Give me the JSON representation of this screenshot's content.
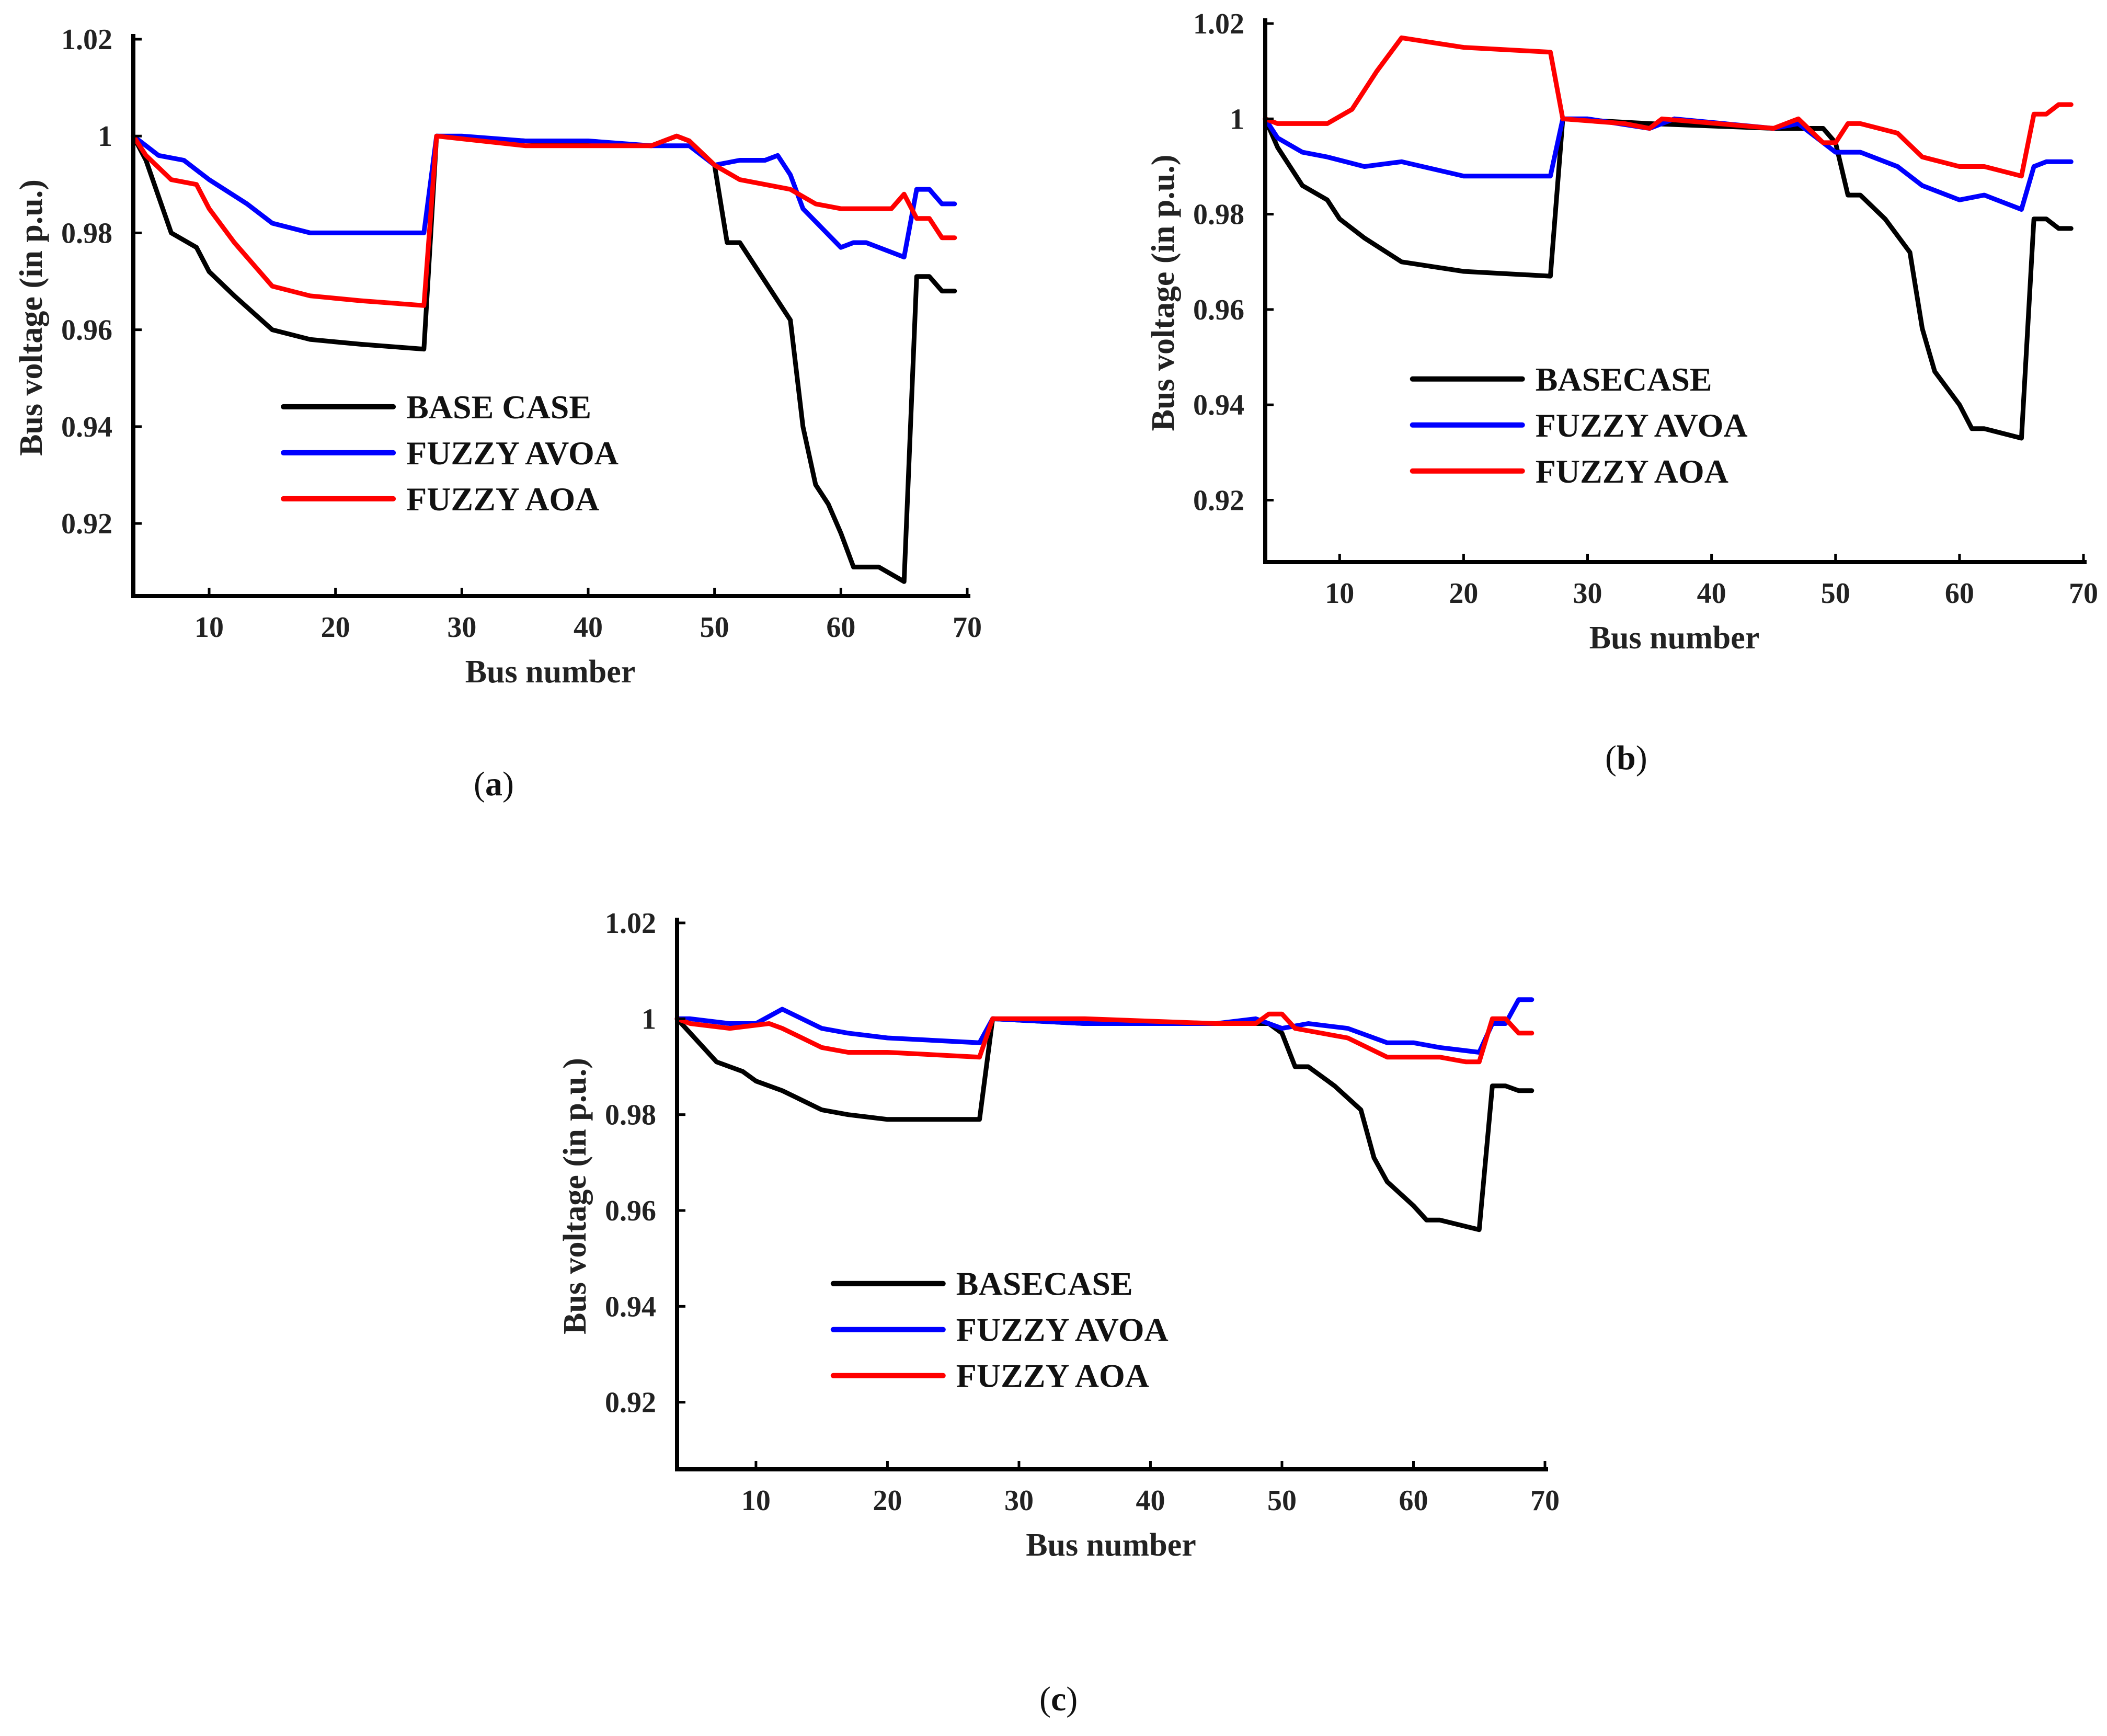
{
  "chart_data": [
    {
      "type": "line",
      "panel": "a",
      "caption": "a",
      "xlabel": "Bus number",
      "ylabel": "Bus voltage (in p.u.)",
      "xlim": [
        4,
        70
      ],
      "ylim": [
        0.905,
        1.02
      ],
      "xticks": [
        10,
        20,
        30,
        40,
        50,
        60,
        70
      ],
      "yticks": [
        0.92,
        0.94,
        0.96,
        0.98,
        1,
        1.02
      ],
      "ytick_labels": [
        "0.92",
        "0.94",
        "0.96",
        "0.98",
        "1",
        "1.02"
      ],
      "legend_position": "center-left",
      "series": [
        {
          "name": "BASE CASE",
          "color": "#000000",
          "x": [
            4,
            5,
            7,
            9,
            10,
            12,
            15,
            18,
            22,
            27,
            28,
            35,
            45,
            47,
            48,
            50,
            51,
            52,
            54,
            56,
            57,
            58,
            59,
            60,
            61,
            63,
            65,
            66,
            67,
            68,
            69
          ],
          "y": [
            1.0,
            0.995,
            0.98,
            0.977,
            0.972,
            0.967,
            0.96,
            0.958,
            0.957,
            0.956,
            1.0,
            0.999,
            0.998,
            1.0,
            0.999,
            0.994,
            0.978,
            0.978,
            0.97,
            0.962,
            0.94,
            0.928,
            0.924,
            0.918,
            0.911,
            0.911,
            0.908,
            0.971,
            0.971,
            0.968,
            0.968
          ]
        },
        {
          "name": "FUZZY AVOA",
          "color": "#0000ff",
          "x": [
            4,
            5,
            6,
            8,
            10,
            13,
            15,
            18,
            22,
            27,
            28,
            30,
            35,
            40,
            45,
            48,
            50,
            52,
            54,
            55,
            56,
            57,
            60,
            61,
            62,
            63,
            65,
            66,
            67,
            68,
            69
          ],
          "y": [
            1.0,
            0.998,
            0.996,
            0.995,
            0.991,
            0.986,
            0.982,
            0.98,
            0.98,
            0.98,
            1.0,
            1.0,
            0.999,
            0.999,
            0.998,
            0.998,
            0.994,
            0.995,
            0.995,
            0.996,
            0.992,
            0.985,
            0.977,
            0.978,
            0.978,
            0.977,
            0.975,
            0.989,
            0.989,
            0.986,
            0.986
          ]
        },
        {
          "name": "FUZZY AOA",
          "color": "#ff0000",
          "x": [
            4,
            5,
            7,
            9,
            10,
            12,
            15,
            18,
            22,
            27,
            28,
            35,
            45,
            47,
            48,
            50,
            52,
            54,
            56,
            58,
            60,
            62,
            64,
            65,
            66,
            67,
            68,
            69
          ],
          "y": [
            1.0,
            0.996,
            0.991,
            0.99,
            0.985,
            0.978,
            0.969,
            0.967,
            0.966,
            0.965,
            1.0,
            0.998,
            0.998,
            1.0,
            0.999,
            0.994,
            0.991,
            0.99,
            0.989,
            0.986,
            0.985,
            0.985,
            0.985,
            0.988,
            0.983,
            0.983,
            0.979,
            0.979
          ]
        }
      ]
    },
    {
      "type": "line",
      "panel": "b",
      "caption": "b",
      "xlabel": "Bus number",
      "ylabel": "Bus voltage (in p.u.)",
      "xlim": [
        4,
        70
      ],
      "ylim": [
        0.907,
        1.02
      ],
      "xticks": [
        10,
        20,
        30,
        40,
        50,
        60,
        70
      ],
      "yticks": [
        0.92,
        0.94,
        0.96,
        0.98,
        1,
        1.02
      ],
      "ytick_labels": [
        "0.92",
        "0.94",
        "0.96",
        "0.98",
        "1",
        "1.02"
      ],
      "legend_position": "center-left",
      "series": [
        {
          "name": "BASECASE",
          "color": "#000000",
          "x": [
            4,
            5,
            7,
            9,
            10,
            12,
            15,
            20,
            27,
            28,
            35,
            45,
            49,
            50,
            51,
            52,
            54,
            56,
            57,
            58,
            60,
            61,
            62,
            65,
            66,
            67,
            68,
            69
          ],
          "y": [
            1.0,
            0.994,
            0.986,
            0.983,
            0.979,
            0.975,
            0.97,
            0.968,
            0.967,
            1.0,
            0.999,
            0.998,
            0.998,
            0.995,
            0.984,
            0.984,
            0.979,
            0.972,
            0.956,
            0.947,
            0.94,
            0.935,
            0.935,
            0.933,
            0.979,
            0.979,
            0.977,
            0.977
          ]
        },
        {
          "name": "FUZZY AVOA",
          "color": "#0000ff",
          "x": [
            4,
            5,
            7,
            9,
            12,
            15,
            20,
            27,
            28,
            30,
            35,
            37,
            45,
            47,
            50,
            52,
            55,
            57,
            60,
            62,
            65,
            66,
            67,
            69
          ],
          "y": [
            1.0,
            0.996,
            0.993,
            0.992,
            0.99,
            0.991,
            0.988,
            0.988,
            1.0,
            1.0,
            0.998,
            1.0,
            0.998,
            0.999,
            0.993,
            0.993,
            0.99,
            0.986,
            0.983,
            0.984,
            0.981,
            0.99,
            0.991,
            0.991
          ]
        },
        {
          "name": "FUZZY AOA",
          "color": "#ff0000",
          "x": [
            4,
            5,
            7,
            9,
            11,
            13,
            15,
            20,
            27,
            28,
            33,
            35,
            36,
            45,
            47,
            49,
            50,
            51,
            52,
            55,
            57,
            60,
            62,
            65,
            66,
            67,
            68,
            69
          ],
          "y": [
            1.0,
            0.999,
            0.999,
            0.999,
            1.002,
            1.01,
            1.017,
            1.015,
            1.014,
            1.0,
            0.999,
            0.998,
            1.0,
            0.998,
            1.0,
            0.995,
            0.995,
            0.999,
            0.999,
            0.997,
            0.992,
            0.99,
            0.99,
            0.988,
            1.001,
            1.001,
            1.003,
            1.003
          ]
        }
      ]
    },
    {
      "type": "line",
      "panel": "c",
      "caption": "c",
      "xlabel": "Bus number",
      "ylabel": "Bus voltage (in p.u.)",
      "xlim": [
        4,
        70
      ],
      "ylim": [
        0.906,
        1.02
      ],
      "xticks": [
        10,
        20,
        30,
        40,
        50,
        60,
        70
      ],
      "yticks": [
        0.92,
        0.94,
        0.96,
        0.98,
        1,
        1.02
      ],
      "ytick_labels": [
        "0.92",
        "0.94",
        "0.96",
        "0.98",
        "1",
        "1.02"
      ],
      "legend_position": "center-left",
      "series": [
        {
          "name": "BASECASE",
          "color": "#000000",
          "x": [
            4,
            5,
            7,
            9,
            10,
            12,
            15,
            17,
            20,
            27,
            28,
            35,
            45,
            49,
            50,
            51,
            52,
            54,
            56,
            57,
            58,
            60,
            61,
            62,
            65,
            66,
            67,
            68,
            69
          ],
          "y": [
            1.0,
            0.997,
            0.991,
            0.989,
            0.987,
            0.985,
            0.981,
            0.98,
            0.979,
            0.979,
            1.0,
            0.999,
            0.999,
            0.999,
            0.997,
            0.99,
            0.99,
            0.986,
            0.981,
            0.971,
            0.966,
            0.961,
            0.958,
            0.958,
            0.956,
            0.986,
            0.986,
            0.985,
            0.985
          ]
        },
        {
          "name": "FUZZY AVOA",
          "color": "#0000ff",
          "x": [
            4,
            5,
            8,
            10,
            12,
            15,
            17,
            20,
            27,
            28,
            35,
            45,
            48,
            50,
            52,
            55,
            58,
            60,
            62,
            65,
            66,
            67,
            68,
            69
          ],
          "y": [
            1.0,
            1.0,
            0.999,
            0.999,
            1.002,
            0.998,
            0.997,
            0.996,
            0.995,
            1.0,
            0.999,
            0.999,
            1.0,
            0.998,
            0.999,
            0.998,
            0.995,
            0.995,
            0.994,
            0.993,
            0.999,
            0.999,
            1.004,
            1.004
          ]
        },
        {
          "name": "FUZZY AOA",
          "color": "#ff0000",
          "x": [
            4,
            5,
            8,
            11,
            12,
            15,
            17,
            20,
            27,
            28,
            35,
            45,
            48,
            49,
            50,
            51,
            55,
            58,
            60,
            62,
            64,
            65,
            66,
            67,
            68,
            69
          ],
          "y": [
            1.0,
            0.999,
            0.998,
            0.999,
            0.998,
            0.994,
            0.993,
            0.993,
            0.992,
            1.0,
            1.0,
            0.999,
            0.999,
            1.001,
            1.001,
            0.998,
            0.996,
            0.992,
            0.992,
            0.992,
            0.991,
            0.991,
            1.0,
            1.0,
            0.997,
            0.997
          ]
        }
      ]
    }
  ]
}
